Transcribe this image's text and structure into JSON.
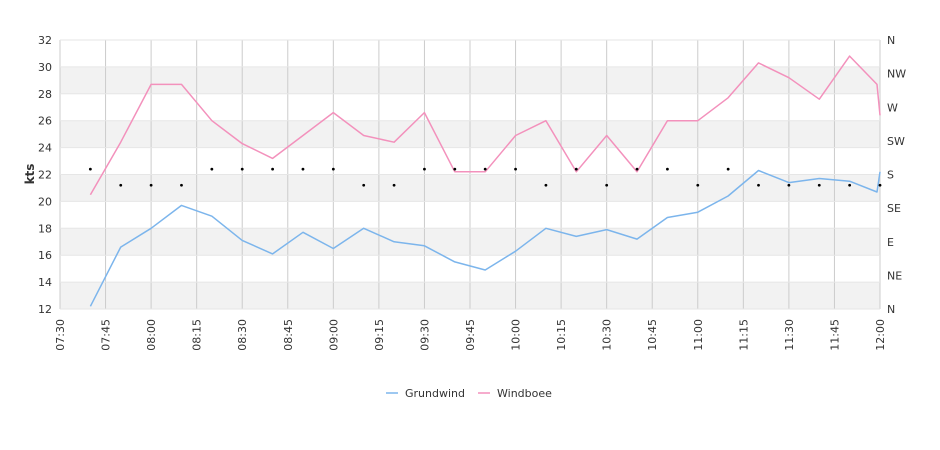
{
  "chart_data": {
    "type": "line",
    "ylabel": "kts",
    "ylim": [
      12,
      32
    ],
    "yticks": [
      "12",
      "14",
      "16",
      "18",
      "20",
      "22",
      "24",
      "26",
      "28",
      "30",
      "32"
    ],
    "xlim": [
      "07:30",
      "12:00"
    ],
    "xticks": [
      "07:30",
      "07:45",
      "08:00",
      "08:15",
      "08:30",
      "08:45",
      "09:00",
      "09:15",
      "09:30",
      "09:45",
      "10:00",
      "10:15",
      "10:30",
      "10:45",
      "11:00",
      "11:15",
      "11:30",
      "11:45",
      "12:00"
    ],
    "right_axis": {
      "ticks": [
        "N",
        "NE",
        "E",
        "SE",
        "S",
        "SW",
        "W",
        "NW",
        "N"
      ]
    },
    "grid": true,
    "legend_position": "bottom",
    "series": [
      {
        "name": "Grundwind",
        "color": "#7cb5ec",
        "x": [
          "07:40",
          "07:50",
          "08:00",
          "08:10",
          "08:20",
          "08:30",
          "08:40",
          "08:50",
          "09:00",
          "09:10",
          "09:20",
          "09:30",
          "09:40",
          "09:50",
          "10:00",
          "10:10",
          "10:20",
          "10:30",
          "10:40",
          "10:50",
          "11:00",
          "11:10",
          "11:20",
          "11:30",
          "11:40",
          "11:50",
          "11:59",
          "12:00"
        ],
        "values": [
          12.2,
          16.6,
          18.0,
          19.7,
          18.9,
          17.1,
          16.1,
          17.7,
          16.5,
          18.0,
          17.0,
          16.7,
          15.5,
          14.9,
          16.3,
          18.0,
          17.4,
          17.9,
          17.2,
          18.8,
          19.2,
          20.4,
          22.3,
          21.4,
          21.7,
          21.5,
          20.7,
          22.2
        ]
      },
      {
        "name": "Windboee",
        "color": "#f391bc",
        "x": [
          "07:40",
          "07:50",
          "08:00",
          "08:10",
          "08:20",
          "08:30",
          "08:40",
          "08:50",
          "09:00",
          "09:10",
          "09:20",
          "09:30",
          "09:40",
          "09:50",
          "10:00",
          "10:10",
          "10:20",
          "10:30",
          "10:40",
          "10:50",
          "11:00",
          "11:10",
          "11:20",
          "11:30",
          "11:40",
          "11:50",
          "11:59",
          "12:00"
        ],
        "values": [
          20.5,
          24.4,
          28.7,
          28.7,
          26.0,
          24.3,
          23.2,
          24.9,
          26.6,
          24.9,
          24.4,
          26.6,
          22.2,
          22.2,
          24.9,
          26.0,
          22.2,
          24.9,
          22.2,
          26.0,
          26.0,
          27.7,
          30.3,
          29.2,
          27.6,
          30.8,
          28.7,
          26.4
        ]
      }
    ],
    "direction_markers": {
      "x": [
        "07:40",
        "07:50",
        "08:00",
        "08:10",
        "08:20",
        "08:30",
        "08:40",
        "08:50",
        "09:00",
        "09:10",
        "09:20",
        "09:30",
        "09:40",
        "09:50",
        "10:00",
        "10:10",
        "10:20",
        "10:30",
        "10:40",
        "10:50",
        "11:00",
        "11:10",
        "11:20",
        "11:30",
        "11:40",
        "11:50",
        "12:00"
      ],
      "values": [
        22.4,
        21.2,
        21.2,
        21.2,
        22.4,
        22.4,
        22.4,
        22.4,
        22.4,
        21.2,
        21.2,
        22.4,
        22.4,
        22.4,
        22.4,
        21.2,
        22.4,
        21.2,
        22.4,
        22.4,
        21.2,
        22.4,
        21.2,
        21.2,
        21.2,
        21.2,
        21.2
      ],
      "color": "#000000"
    }
  }
}
